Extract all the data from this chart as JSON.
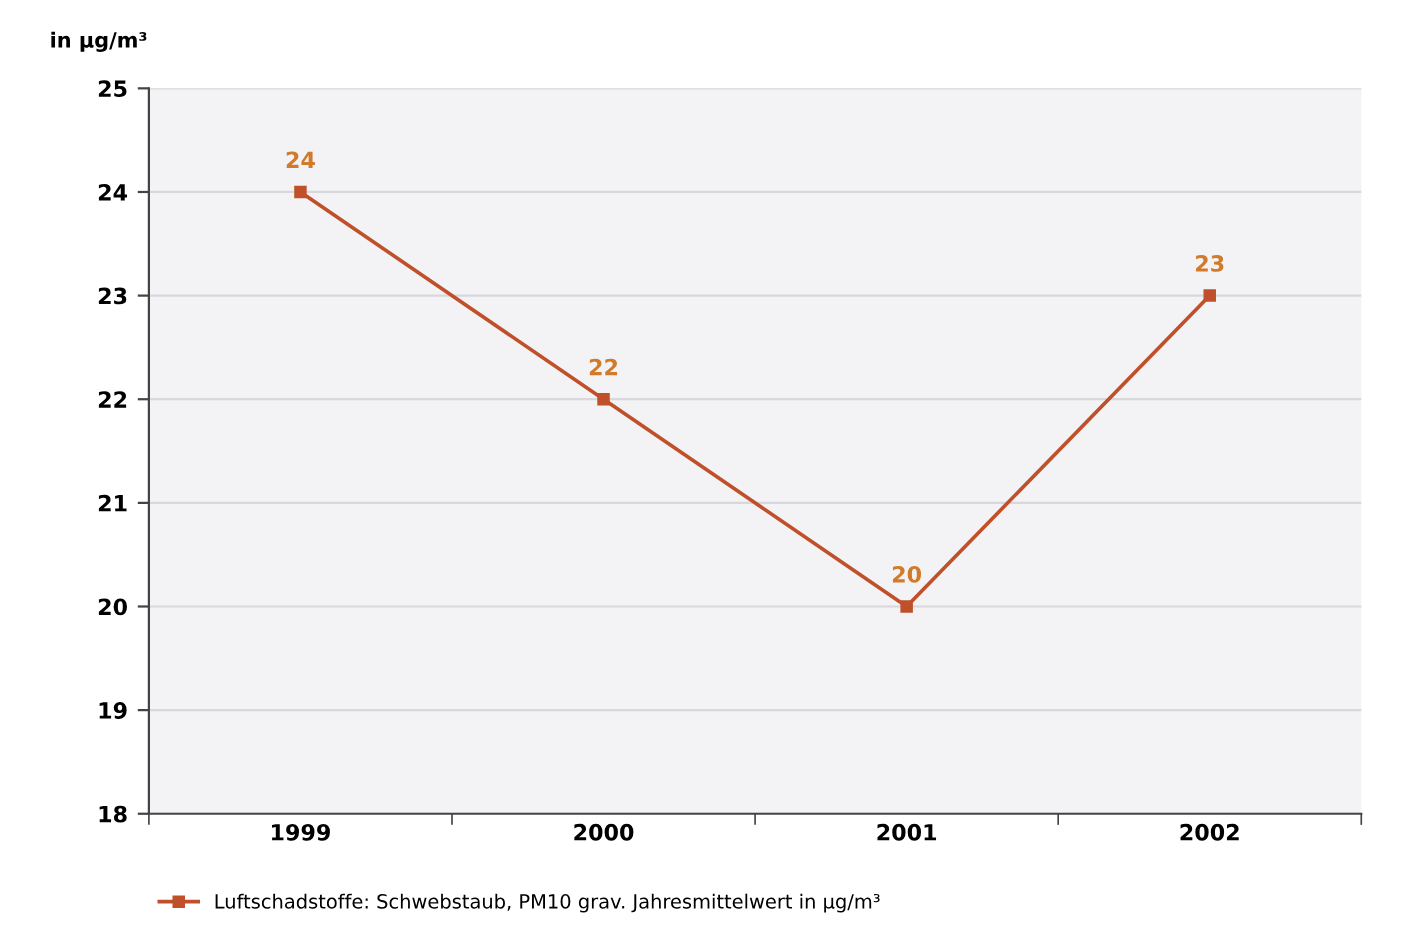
{
  "chart_data": {
    "type": "line",
    "ylabel": "in µg/m³",
    "categories": [
      "1999",
      "2000",
      "2001",
      "2002"
    ],
    "series": [
      {
        "name": "Luftschadstoffe: Schwebstaub, PM10 grav. Jahresmittelwert in µg/m³",
        "color": "#c0502a",
        "values": [
          24,
          22,
          20,
          23
        ]
      }
    ],
    "ylim": [
      18,
      25
    ],
    "yticks": [
      18,
      19,
      20,
      21,
      22,
      23,
      24,
      25
    ],
    "grid": "y",
    "legend": "bottom",
    "marker": "square",
    "line_style": "solid",
    "data_labels": true
  }
}
